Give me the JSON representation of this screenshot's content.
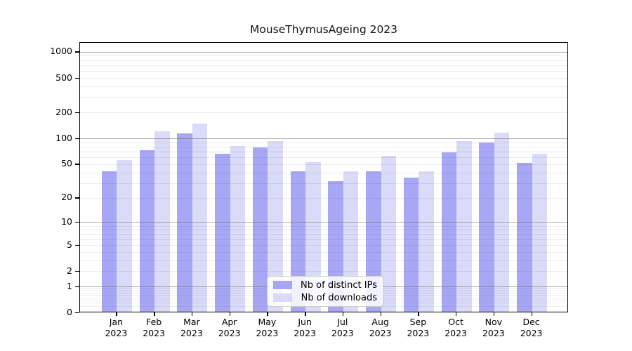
{
  "chart_data": {
    "type": "bar",
    "title": "MouseThymusAgeing 2023",
    "categories": [
      "Jan 2023",
      "Feb 2023",
      "Mar 2023",
      "Apr 2023",
      "May 2023",
      "Jun 2023",
      "Jul 2023",
      "Aug 2023",
      "Sep 2023",
      "Oct 2023",
      "Nov 2023",
      "Dec 2023"
    ],
    "series": [
      {
        "name": "Nb of distinct IPs",
        "color": "#a7a7f6",
        "values": [
          40,
          71,
          111,
          64,
          77,
          40,
          31,
          40,
          34,
          67,
          88,
          50
        ]
      },
      {
        "name": "Nb of downloads",
        "color": "#dadaf9",
        "values": [
          54,
          118,
          145,
          79,
          90,
          51,
          40,
          61,
          40,
          90,
          114,
          64
        ]
      }
    ],
    "xlabel": "",
    "ylabel": "",
    "yscale": "log1p",
    "ylim": [
      0,
      1270
    ],
    "yticks": [
      {
        "label": "1000",
        "value": 1000
      },
      {
        "label": "500",
        "value": 500
      },
      {
        "label": "200",
        "value": 200
      },
      {
        "label": "100",
        "value": 100
      },
      {
        "label": "50",
        "value": 50
      },
      {
        "label": "20",
        "value": 20
      },
      {
        "label": "10",
        "value": 10
      },
      {
        "label": "5",
        "value": 5
      },
      {
        "label": "2",
        "value": 2
      },
      {
        "label": "1",
        "value": 1
      },
      {
        "label": "0",
        "value": 0
      }
    ],
    "grid": true,
    "legend_position": "lower center"
  },
  "colors": {
    "distinct_ips": "#a7a7f6",
    "downloads": "#dadaf9",
    "grid_major": "#6e6e6e",
    "grid_minor": "#ebebeb",
    "spine": "#000000"
  }
}
